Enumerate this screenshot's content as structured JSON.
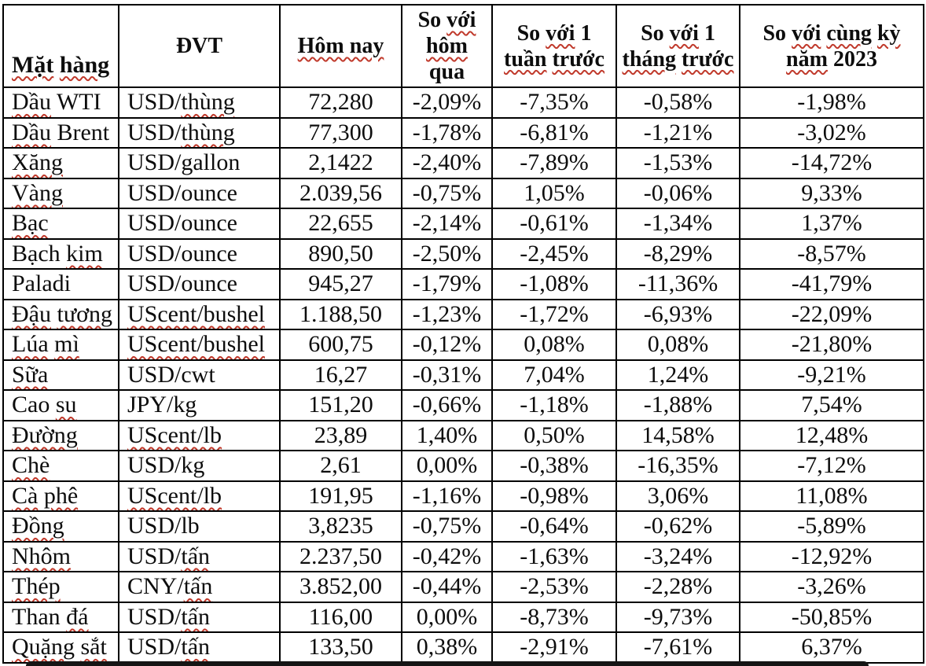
{
  "colors": {
    "table_border": "#000000",
    "text": "#0d0d0d",
    "squiggle": "#c0392b",
    "bottom_bar": "#151515",
    "background": "#ffffff"
  },
  "table": {
    "headers": [
      {
        "text": "Mặt hàng",
        "sq": [
          "Mặt",
          "hàng"
        ]
      },
      {
        "text": "ĐVT",
        "sq": []
      },
      {
        "text": "Hôm nay",
        "sq": [
          "Hôm nay"
        ]
      },
      {
        "text": "So với hôm qua",
        "sq": [
          "với",
          "hôm"
        ]
      },
      {
        "text": "So với 1 tuần trước",
        "sq": [
          "với",
          "tuần",
          "trước"
        ]
      },
      {
        "text": "So với 1 tháng trước",
        "sq": [
          "với",
          "tháng",
          "trước"
        ]
      },
      {
        "text": "So với cùng kỳ năm 2023",
        "sq": [
          "với",
          "cùng",
          "kỳ",
          "năm"
        ]
      }
    ],
    "rows": [
      {
        "name": "Dầu WTI",
        "unit": "USD/thùng",
        "values": [
          "72,280",
          "-2,09%",
          "-7,35%",
          "-0,58%",
          "-1,98%"
        ],
        "sq_name": [
          "Dầu"
        ],
        "sq_unit": [
          "thùng"
        ]
      },
      {
        "name": "Dầu Brent",
        "unit": "USD/thùng",
        "values": [
          "77,300",
          "-1,78%",
          "-6,81%",
          "-1,21%",
          "-3,02%"
        ],
        "sq_name": [
          "Dầu"
        ],
        "sq_unit": [
          "thùng"
        ]
      },
      {
        "name": "Xăng",
        "unit": "USD/gallon",
        "values": [
          "2,1422",
          "-2,40%",
          "-7,89%",
          "-1,53%",
          "-14,72%"
        ],
        "sq_name": [
          "Xăng"
        ],
        "sq_unit": []
      },
      {
        "name": "Vàng",
        "unit": "USD/ounce",
        "values": [
          "2.039,56",
          "-0,75%",
          "1,05%",
          "-0,06%",
          "9,33%"
        ],
        "sq_name": [
          "Vàng"
        ],
        "sq_unit": []
      },
      {
        "name": "Bạc",
        "unit": "USD/ounce",
        "values": [
          "22,655",
          "-2,14%",
          "-0,61%",
          "-1,34%",
          "1,37%"
        ],
        "sq_name": [
          "Bạc"
        ],
        "sq_unit": []
      },
      {
        "name": "Bạch kim",
        "unit": "USD/ounce",
        "values": [
          "890,50",
          "-2,50%",
          "-2,45%",
          "-8,29%",
          "-8,57%"
        ],
        "sq_name": [
          "kim"
        ],
        "sq_unit": []
      },
      {
        "name": "Paladi",
        "unit": "USD/ounce",
        "values": [
          "945,27",
          "-1,79%",
          "-1,08%",
          "-11,36%",
          "-41,79%"
        ],
        "sq_name": [],
        "sq_unit": []
      },
      {
        "name": "Đậu tương",
        "unit": "UScent/bushel",
        "values": [
          "1.188,50",
          "-1,23%",
          "-1,72%",
          "-6,93%",
          "-22,09%"
        ],
        "sq_name": [
          "Đậu",
          "tương"
        ],
        "sq_unit": [
          "UScent/bushel"
        ]
      },
      {
        "name": "Lúa mì",
        "unit": "UScent/bushel",
        "values": [
          "600,75",
          "-0,12%",
          "0,08%",
          "0,08%",
          "-21,80%"
        ],
        "sq_name": [
          "Lúa",
          "mì"
        ],
        "sq_unit": [
          "UScent/bushel"
        ]
      },
      {
        "name": "Sữa",
        "unit": "USD/cwt",
        "values": [
          "16,27",
          "-0,31%",
          "7,04%",
          "1,24%",
          "-9,21%"
        ],
        "sq_name": [
          "Sữa"
        ],
        "sq_unit": []
      },
      {
        "name": "Cao su",
        "unit": "JPY/kg",
        "values": [
          "151,20",
          "-0,66%",
          "-1,18%",
          "-1,88%",
          "7,54%"
        ],
        "sq_name": [
          "su"
        ],
        "sq_unit": []
      },
      {
        "name": "Đường",
        "unit": "UScent/lb",
        "values": [
          "23,89",
          "1,40%",
          "0,50%",
          "14,58%",
          "12,48%"
        ],
        "sq_name": [
          "Đường"
        ],
        "sq_unit": [
          "UScent/lb"
        ]
      },
      {
        "name": "Chè",
        "unit": "USD/kg",
        "values": [
          "2,61",
          "0,00%",
          "-0,38%",
          "-16,35%",
          "-7,12%"
        ],
        "sq_name": [
          "Chè"
        ],
        "sq_unit": []
      },
      {
        "name": "Cà phê",
        "unit": "UScent/lb",
        "values": [
          "191,95",
          "-1,16%",
          "-0,98%",
          "3,06%",
          "11,08%"
        ],
        "sq_name": [
          "Cà",
          "phê"
        ],
        "sq_unit": [
          "UScent/lb"
        ]
      },
      {
        "name": "Đồng",
        "unit": "USD/lb",
        "values": [
          "3,8235",
          "-0,75%",
          "-0,64%",
          "-0,62%",
          "-5,89%"
        ],
        "sq_name": [
          "Đồng"
        ],
        "sq_unit": []
      },
      {
        "name": "Nhôm",
        "unit": "USD/tấn",
        "values": [
          "2.237,50",
          "-0,42%",
          "-1,63%",
          "-3,24%",
          "-12,92%"
        ],
        "sq_name": [
          "Nhôm"
        ],
        "sq_unit": [
          "tấn"
        ]
      },
      {
        "name": "Thép",
        "unit": "CNY/tấn",
        "values": [
          "3.852,00",
          "-0,44%",
          "-2,53%",
          "-2,28%",
          "-3,26%"
        ],
        "sq_name": [
          "Thép"
        ],
        "sq_unit": [
          "tấn"
        ]
      },
      {
        "name": "Than đá",
        "unit": "USD/tấn",
        "values": [
          "116,00",
          "0,00%",
          "-8,73%",
          "-9,73%",
          "-50,85%"
        ],
        "sq_name": [
          "đá"
        ],
        "sq_unit": [
          "tấn"
        ]
      },
      {
        "name": "Quặng sắt",
        "unit": "USD/tấn",
        "values": [
          "133,50",
          "0,38%",
          "-2,91%",
          "-7,61%",
          "6,37%"
        ],
        "sq_name": [
          "Quặng",
          "sắt"
        ],
        "sq_unit": [
          "tấn"
        ]
      }
    ]
  }
}
